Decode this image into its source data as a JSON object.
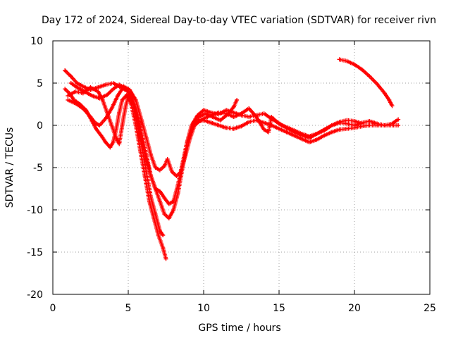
{
  "chart_data": {
    "type": "scatter",
    "title": "Day 172 of 2024, Sidereal Day-to-day VTEC variation (SDTVAR) for receiver rivn",
    "xlabel": "GPS time / hours",
    "ylabel": "SDTVAR / TECUs",
    "xlim": [
      0,
      25
    ],
    "ylim": [
      -20,
      10
    ],
    "xticks": [
      "0",
      "5",
      "10",
      "15",
      "20",
      "25"
    ],
    "yticks": [
      "-20",
      "-15",
      "-10",
      "-5",
      "0",
      "5",
      "10"
    ],
    "grid": true,
    "marker": "+",
    "color": "#ff0000",
    "series": [
      {
        "name": "track-1",
        "points": [
          [
            0.8,
            6.5
          ],
          [
            1.2,
            5.8
          ],
          [
            1.6,
            5.0
          ],
          [
            2.0,
            4.6
          ],
          [
            2.5,
            4.2
          ],
          [
            3.0,
            4.5
          ],
          [
            3.5,
            4.8
          ],
          [
            4.0,
            5.0
          ],
          [
            4.5,
            4.5
          ],
          [
            5.0,
            4.0
          ],
          [
            5.3,
            2.5
          ],
          [
            5.6,
            0.0
          ],
          [
            5.9,
            -2.0
          ],
          [
            6.2,
            -4.0
          ],
          [
            6.5,
            -6.0
          ],
          [
            6.8,
            -7.5
          ],
          [
            7.1,
            -9.0
          ],
          [
            7.4,
            -10.5
          ],
          [
            7.7,
            -11.0
          ],
          [
            8.0,
            -10.0
          ],
          [
            8.3,
            -8.0
          ],
          [
            8.6,
            -5.0
          ],
          [
            8.9,
            -2.0
          ],
          [
            9.2,
            0.0
          ],
          [
            9.6,
            1.2
          ],
          [
            10.0,
            1.8
          ],
          [
            10.5,
            1.5
          ],
          [
            11.0,
            1.3
          ],
          [
            11.5,
            1.8
          ],
          [
            12.0,
            1.5
          ],
          [
            12.5,
            1.2
          ],
          [
            13.0,
            1.0
          ],
          [
            13.5,
            1.2
          ],
          [
            14.0,
            1.4
          ],
          [
            14.5,
            0.8
          ],
          [
            15.0,
            0.2
          ],
          [
            15.5,
            -0.3
          ],
          [
            16.0,
            -0.8
          ],
          [
            16.5,
            -1.2
          ],
          [
            17.0,
            -1.5
          ],
          [
            17.5,
            -1.0
          ],
          [
            18.0,
            -0.6
          ],
          [
            18.5,
            0.0
          ],
          [
            19.0,
            0.3
          ],
          [
            19.5,
            0.2
          ],
          [
            20.0,
            0.0
          ],
          [
            20.5,
            0.3
          ],
          [
            21.0,
            0.5
          ],
          [
            21.5,
            0.2
          ],
          [
            22.0,
            0.0
          ],
          [
            22.5,
            0.2
          ],
          [
            22.9,
            0.7
          ]
        ]
      },
      {
        "name": "track-2",
        "points": [
          [
            0.8,
            4.3
          ],
          [
            1.1,
            3.8
          ],
          [
            1.4,
            3.0
          ],
          [
            1.8,
            2.5
          ],
          [
            2.2,
            1.8
          ],
          [
            2.6,
            0.5
          ],
          [
            2.9,
            -0.5
          ],
          [
            3.2,
            -1.2
          ],
          [
            3.5,
            -2.0
          ],
          [
            3.8,
            -2.6
          ],
          [
            4.0,
            -2.0
          ],
          [
            4.2,
            -0.5
          ],
          [
            4.4,
            1.5
          ],
          [
            4.6,
            3.0
          ],
          [
            4.9,
            3.6
          ],
          [
            5.2,
            2.5
          ],
          [
            5.5,
            0.0
          ],
          [
            5.8,
            -3.0
          ],
          [
            6.1,
            -6.0
          ],
          [
            6.4,
            -9.0
          ],
          [
            6.7,
            -11.0
          ],
          [
            7.0,
            -13.0
          ],
          [
            7.3,
            -14.5
          ],
          [
            7.5,
            -15.8
          ]
        ]
      },
      {
        "name": "track-3",
        "points": [
          [
            1.0,
            3.5
          ],
          [
            1.5,
            4.0
          ],
          [
            2.0,
            3.8
          ],
          [
            2.5,
            4.5
          ],
          [
            3.0,
            4.0
          ],
          [
            3.3,
            3.0
          ],
          [
            3.6,
            1.5
          ],
          [
            3.9,
            0.0
          ],
          [
            4.2,
            -1.5
          ],
          [
            4.4,
            -2.2
          ],
          [
            4.6,
            0.0
          ],
          [
            4.8,
            2.0
          ],
          [
            5.0,
            3.5
          ],
          [
            5.3,
            3.0
          ],
          [
            5.6,
            0.5
          ],
          [
            5.9,
            -2.5
          ],
          [
            6.2,
            -5.5
          ],
          [
            6.5,
            -8.5
          ],
          [
            6.8,
            -10.5
          ],
          [
            7.1,
            -12.5
          ],
          [
            7.3,
            -13.0
          ]
        ]
      },
      {
        "name": "track-4",
        "points": [
          [
            1.0,
            3.0
          ],
          [
            1.5,
            2.6
          ],
          [
            2.0,
            2.0
          ],
          [
            2.5,
            1.0
          ],
          [
            2.8,
            0.3
          ],
          [
            3.1,
            0.0
          ],
          [
            3.5,
            0.8
          ],
          [
            3.9,
            2.0
          ],
          [
            4.3,
            3.5
          ],
          [
            4.7,
            4.6
          ],
          [
            5.1,
            4.2
          ],
          [
            5.5,
            3.0
          ],
          [
            5.9,
            0.5
          ],
          [
            6.2,
            -1.5
          ],
          [
            6.5,
            -3.5
          ],
          [
            6.8,
            -5.0
          ],
          [
            7.1,
            -5.3
          ],
          [
            7.4,
            -4.8
          ],
          [
            7.6,
            -4.0
          ],
          [
            7.9,
            -5.5
          ],
          [
            8.2,
            -6.0
          ],
          [
            8.5,
            -5.5
          ],
          [
            8.8,
            -3.5
          ],
          [
            9.1,
            -1.5
          ],
          [
            9.4,
            0.0
          ],
          [
            9.7,
            0.5
          ],
          [
            10.0,
            0.6
          ],
          [
            10.5,
            0.3
          ],
          [
            11.0,
            0.0
          ],
          [
            11.5,
            -0.3
          ],
          [
            12.0,
            -0.4
          ],
          [
            12.5,
            -0.1
          ],
          [
            13.0,
            0.4
          ],
          [
            13.5,
            0.6
          ],
          [
            14.0,
            0.3
          ],
          [
            14.5,
            0.0
          ],
          [
            15.0,
            -0.4
          ],
          [
            15.5,
            -0.8
          ],
          [
            16.0,
            -1.2
          ],
          [
            16.5,
            -1.6
          ],
          [
            17.0,
            -2.0
          ],
          [
            17.5,
            -1.7
          ],
          [
            18.0,
            -1.2
          ],
          [
            18.5,
            -0.8
          ],
          [
            19.0,
            -0.5
          ],
          [
            19.5,
            -0.4
          ],
          [
            20.0,
            -0.3
          ],
          [
            20.5,
            -0.1
          ],
          [
            21.0,
            0.0
          ],
          [
            21.5,
            0.0
          ],
          [
            22.0,
            0.0
          ],
          [
            22.5,
            0.0
          ],
          [
            22.9,
            0.0
          ]
        ]
      },
      {
        "name": "track-5",
        "points": [
          [
            1.2,
            5.0
          ],
          [
            1.6,
            4.5
          ],
          [
            2.1,
            4.0
          ],
          [
            2.6,
            3.5
          ],
          [
            3.1,
            3.2
          ],
          [
            3.6,
            3.6
          ],
          [
            4.0,
            4.3
          ],
          [
            4.4,
            4.8
          ],
          [
            4.8,
            4.4
          ],
          [
            5.2,
            3.5
          ],
          [
            5.6,
            1.5
          ],
          [
            5.9,
            -1.0
          ],
          [
            6.2,
            -3.5
          ],
          [
            6.5,
            -6.0
          ],
          [
            6.8,
            -7.5
          ],
          [
            7.1,
            -7.8
          ],
          [
            7.4,
            -8.6
          ],
          [
            7.7,
            -9.3
          ],
          [
            8.0,
            -9.0
          ],
          [
            8.3,
            -7.0
          ],
          [
            8.6,
            -4.5
          ],
          [
            8.9,
            -2.0
          ],
          [
            9.3,
            0.0
          ],
          [
            9.7,
            1.0
          ],
          [
            10.1,
            1.4
          ],
          [
            10.6,
            1.0
          ],
          [
            11.1,
            0.6
          ],
          [
            11.6,
            1.3
          ],
          [
            12.0,
            2.2
          ],
          [
            12.2,
            3.0
          ]
        ]
      },
      {
        "name": "track-6",
        "points": [
          [
            9.5,
            0.2
          ],
          [
            10.0,
            0.8
          ],
          [
            10.5,
            1.2
          ],
          [
            11.0,
            1.5
          ],
          [
            11.5,
            1.4
          ],
          [
            12.0,
            1.0
          ],
          [
            12.5,
            1.4
          ],
          [
            13.0,
            2.0
          ],
          [
            13.5,
            1.0
          ],
          [
            14.0,
            -0.5
          ],
          [
            14.3,
            -0.8
          ],
          [
            14.5,
            1.0
          ],
          [
            14.8,
            0.5
          ],
          [
            15.2,
            0.0
          ],
          [
            15.6,
            -0.3
          ],
          [
            16.0,
            -0.6
          ],
          [
            16.5,
            -1.0
          ],
          [
            17.0,
            -1.3
          ],
          [
            17.5,
            -1.0
          ],
          [
            18.0,
            -0.5
          ],
          [
            18.5,
            0.0
          ],
          [
            19.0,
            0.4
          ],
          [
            19.5,
            0.6
          ],
          [
            20.0,
            0.5
          ],
          [
            20.5,
            0.2
          ]
        ]
      },
      {
        "name": "track-7",
        "points": [
          [
            19.0,
            7.8
          ],
          [
            19.5,
            7.6
          ],
          [
            20.0,
            7.2
          ],
          [
            20.5,
            6.6
          ],
          [
            21.0,
            5.8
          ],
          [
            21.5,
            4.9
          ],
          [
            22.0,
            3.8
          ],
          [
            22.3,
            3.0
          ],
          [
            22.5,
            2.3
          ]
        ]
      }
    ]
  }
}
